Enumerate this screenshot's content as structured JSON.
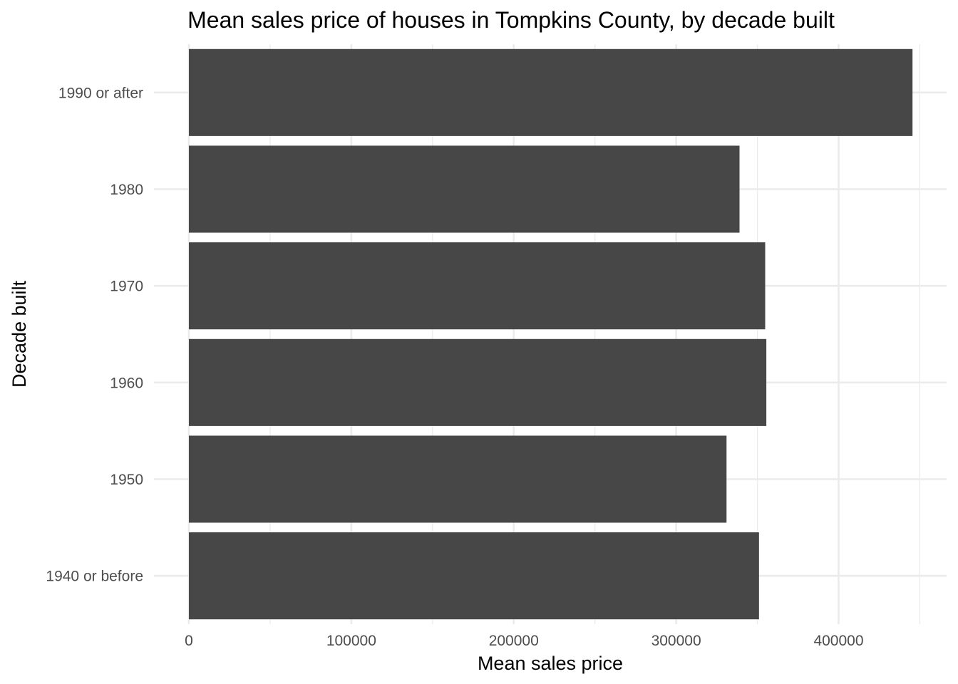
{
  "chart_data": {
    "type": "bar",
    "orientation": "horizontal",
    "title": "Mean sales price of houses in Tompkins County, by decade built",
    "xlabel": "Mean sales price",
    "ylabel": "Decade built",
    "categories": [
      "1940 or before",
      "1950",
      "1960",
      "1970",
      "1980",
      "1990 or after"
    ],
    "values": [
      351000,
      331000,
      355500,
      354800,
      339000,
      445500
    ],
    "xlim": [
      0,
      450000
    ],
    "xticks": [
      0,
      100000,
      200000,
      300000,
      400000
    ],
    "xtick_labels": [
      "0",
      "100000",
      "200000",
      "300000",
      "400000"
    ],
    "grid": true,
    "bar_color": "#474747",
    "grid_color": "#ebebeb"
  }
}
